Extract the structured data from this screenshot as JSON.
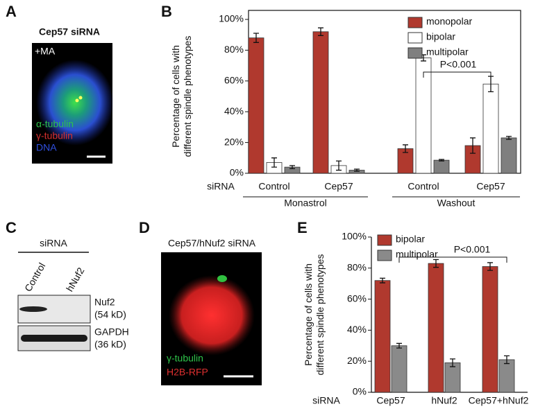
{
  "figure": {
    "panel_labels": [
      "A",
      "B",
      "C",
      "D",
      "E"
    ],
    "panel_a": {
      "title": "Cep57 siRNA",
      "condition": "+MA",
      "stains": [
        "α-tubulin",
        "γ-tubulin",
        "DNA"
      ]
    },
    "panel_c": {
      "header": "siRNA",
      "lanes": [
        "Control",
        "hNuf2"
      ],
      "bands": [
        {
          "name": "Nuf2",
          "size": "(54 kD)"
        },
        {
          "name": "GAPDH",
          "size": "(36 kD)"
        }
      ]
    },
    "panel_d": {
      "title": "Cep57/hNuf2 siRNA",
      "stains": [
        "γ-tubulin",
        "H2B-RFP"
      ]
    }
  },
  "chart_data": [
    {
      "type": "bar",
      "ylabel": [
        "Percentage of cells with",
        "different spindle phenotypes"
      ],
      "x_prefix": "siRNA",
      "categories": [
        "Control",
        "Cep57",
        "Control",
        "Cep57"
      ],
      "groups": [
        "Monastrol",
        "Monastrol",
        "Washout",
        "Washout"
      ],
      "series": [
        {
          "name": "monopolar",
          "color": "#b0392e",
          "values": [
            88,
            92,
            16,
            18
          ],
          "errors": [
            3,
            2.5,
            2.5,
            5
          ]
        },
        {
          "name": "bipolar",
          "color": "#ffffff",
          "values": [
            7,
            5,
            75,
            58
          ],
          "errors": [
            3,
            3,
            2,
            5
          ]
        },
        {
          "name": "multipolar",
          "color": "#7f7f7f",
          "values": [
            4,
            2,
            8.5,
            23
          ],
          "errors": [
            1,
            0.7,
            0.5,
            1
          ]
        }
      ],
      "ylim": [
        0,
        100
      ],
      "yticks": [
        {
          "value": 0,
          "label": "0%"
        },
        {
          "value": 20,
          "label": "20%"
        },
        {
          "value": 40,
          "label": "40%"
        },
        {
          "value": 60,
          "label": "60%"
        },
        {
          "value": 80,
          "label": "80%"
        },
        {
          "value": 100,
          "label": "100%"
        }
      ],
      "legend": "upper right",
      "annotation": "P<0.001"
    },
    {
      "type": "bar",
      "ylabel": [
        "Percentage of cells with",
        "different spindle phenotypes"
      ],
      "x_prefix": "siRNA",
      "categories": [
        "Cep57",
        "hNuf2",
        "Cep57+hNuf2"
      ],
      "series": [
        {
          "name": "bipolar",
          "color": "#b0392e",
          "values": [
            72,
            83,
            81
          ],
          "errors": [
            1.5,
            2.5,
            2.5
          ]
        },
        {
          "name": "multipolar",
          "color": "#8a8a8a",
          "values": [
            30,
            19,
            21
          ],
          "errors": [
            1.5,
            2.5,
            2.5
          ]
        }
      ],
      "ylim": [
        0,
        100
      ],
      "yticks": [
        {
          "value": 0,
          "label": "0%"
        },
        {
          "value": 20,
          "label": "20%"
        },
        {
          "value": 40,
          "label": "40%"
        },
        {
          "value": 60,
          "label": "60%"
        },
        {
          "value": 80,
          "label": "80%"
        },
        {
          "value": 100,
          "label": "100%"
        }
      ],
      "legend": "upper left",
      "annotation": "P<0.001"
    }
  ]
}
